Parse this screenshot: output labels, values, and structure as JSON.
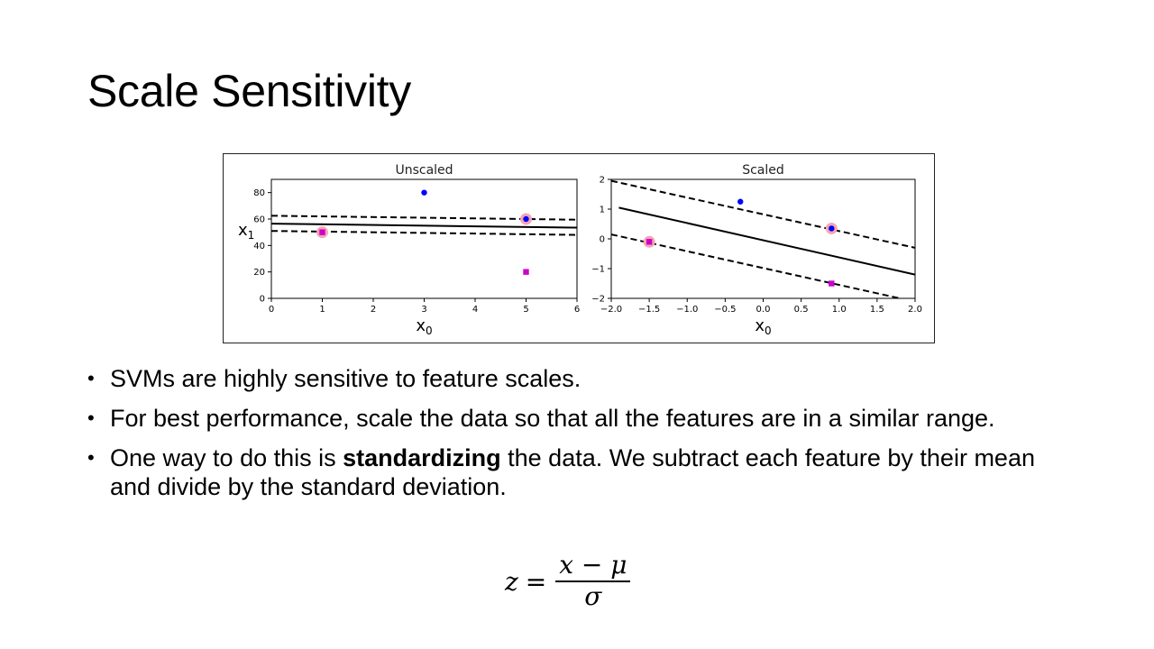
{
  "title": "Scale Sensitivity",
  "bullets": [
    {
      "text": "SVMs are highly sensitive to feature scales."
    },
    {
      "text": "For best performance, scale the data so that all the features are in a similar range."
    },
    {
      "before": "One way to do this is ",
      "bold": "standardizing",
      "after": " the data. We subtract each feature by their mean and divide by the standard deviation."
    }
  ],
  "formula": {
    "lhs": "z",
    "eq": "=",
    "numerator": "x − μ",
    "denominator": "σ"
  },
  "colors": {
    "blue_class": "#0000ff",
    "magenta_class": "#cc00cc",
    "support_vector_ring": "#f4a6b4"
  },
  "chart_data": [
    {
      "type": "scatter",
      "title": "Unscaled",
      "xlabel": "x0",
      "ylabel": "x1",
      "xlim": [
        0,
        6
      ],
      "ylim": [
        0,
        90
      ],
      "xticks": [
        0,
        1,
        2,
        3,
        4,
        5,
        6
      ],
      "yticks": [
        0,
        20,
        40,
        60,
        80
      ],
      "points": [
        {
          "x": 3,
          "y": 80,
          "class": "blue",
          "support": false
        },
        {
          "x": 5,
          "y": 60,
          "class": "blue",
          "support": true
        },
        {
          "x": 1,
          "y": 50,
          "class": "magenta",
          "support": true
        },
        {
          "x": 5,
          "y": 20,
          "class": "magenta",
          "support": false
        }
      ],
      "lines": [
        {
          "style": "solid",
          "x": [
            0,
            6
          ],
          "y": [
            56.5,
            53.5
          ]
        },
        {
          "style": "dashed",
          "x": [
            0,
            6
          ],
          "y": [
            62.5,
            59.5
          ]
        },
        {
          "style": "dashed",
          "x": [
            0,
            6
          ],
          "y": [
            51,
            48
          ]
        }
      ]
    },
    {
      "type": "scatter",
      "title": "Scaled",
      "xlabel": "x0",
      "ylabel": "",
      "xlim": [
        -2.0,
        2.0
      ],
      "ylim": [
        -2,
        2
      ],
      "xticks": [
        -2.0,
        -1.5,
        -1.0,
        -0.5,
        0.0,
        0.5,
        1.0,
        1.5,
        2.0
      ],
      "yticks": [
        -2,
        -1,
        0,
        1,
        2
      ],
      "points": [
        {
          "x": -0.3,
          "y": 1.25,
          "class": "blue",
          "support": false
        },
        {
          "x": 0.9,
          "y": 0.35,
          "class": "blue",
          "support": true
        },
        {
          "x": -1.5,
          "y": -0.1,
          "class": "magenta",
          "support": true
        },
        {
          "x": 0.9,
          "y": -1.5,
          "class": "magenta",
          "support": false
        }
      ],
      "lines": [
        {
          "style": "solid",
          "x": [
            -1.9,
            2.0
          ],
          "y": [
            1.05,
            -1.2
          ]
        },
        {
          "style": "dashed",
          "x": [
            -2.0,
            2.0
          ],
          "y": [
            1.95,
            -0.3
          ]
        },
        {
          "style": "dashed",
          "x": [
            -2.0,
            1.8
          ],
          "y": [
            0.15,
            -2.0
          ]
        }
      ]
    }
  ]
}
